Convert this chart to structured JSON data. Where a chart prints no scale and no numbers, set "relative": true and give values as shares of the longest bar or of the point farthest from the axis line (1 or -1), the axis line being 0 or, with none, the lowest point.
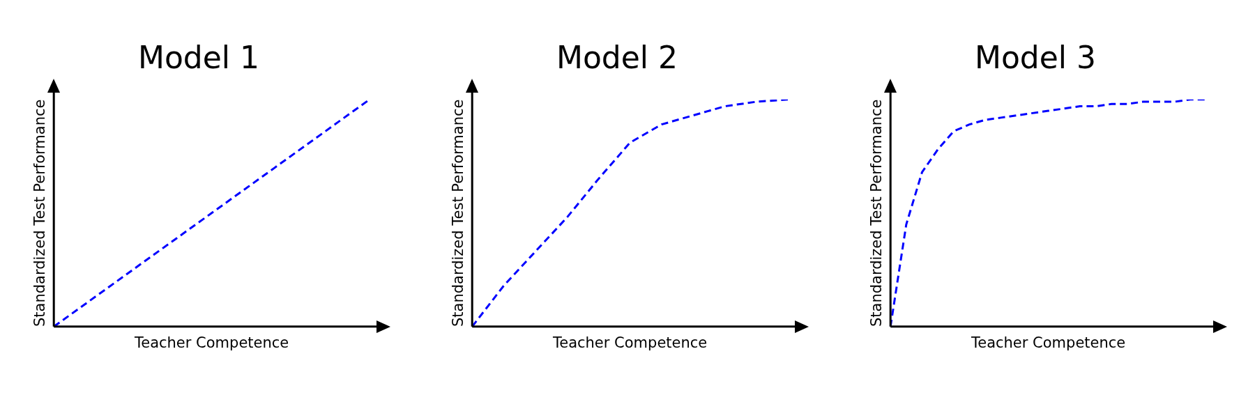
{
  "chart_data": [
    {
      "type": "line",
      "title": "Model 1",
      "xlabel": "Teacher Competence",
      "ylabel": "Standardized Test Performance",
      "relative": true,
      "line_style": "dashed",
      "marker": "none",
      "categories": [
        null,
        null,
        null,
        null,
        null,
        null,
        null,
        null,
        null,
        null,
        null
      ],
      "series": [
        {
          "color": "#0000ff",
          "values": [
            0,
            0.1,
            0.2,
            0.3,
            0.4,
            0.5,
            0.6,
            0.7,
            0.8,
            0.9,
            1
          ]
        }
      ]
    },
    {
      "type": "line",
      "title": "Model 2",
      "xlabel": "Teacher Competence",
      "ylabel": "Standardized Test Performance",
      "relative": true,
      "line_style": "dashed",
      "marker": "none",
      "categories": [
        null,
        null,
        null,
        null,
        null,
        null,
        null,
        null,
        null,
        null,
        null
      ],
      "series": [
        {
          "color": "#0000ff",
          "values": [
            0,
            0.18,
            0.33,
            0.48,
            0.65,
            0.81,
            0.89,
            0.93,
            0.97,
            0.99,
            1
          ]
        }
      ]
    },
    {
      "type": "line",
      "title": "Model 3",
      "xlabel": "Teacher Competence",
      "ylabel": "Standardized Test Performance",
      "relative": true,
      "line_style": "dashed",
      "marker": "none",
      "categories": [
        null,
        null,
        null,
        null,
        null,
        null,
        null,
        null,
        null,
        null,
        null,
        null,
        null,
        null,
        null,
        null,
        null,
        null,
        null,
        null,
        null
      ],
      "series": [
        {
          "color": "#0000ff",
          "values": [
            0,
            0.45,
            0.68,
            0.78,
            0.86,
            0.89,
            0.91,
            0.92,
            0.93,
            0.94,
            0.95,
            0.96,
            0.97,
            0.97,
            0.98,
            0.98,
            0.99,
            0.99,
            0.99,
            1,
            1
          ]
        }
      ]
    }
  ]
}
